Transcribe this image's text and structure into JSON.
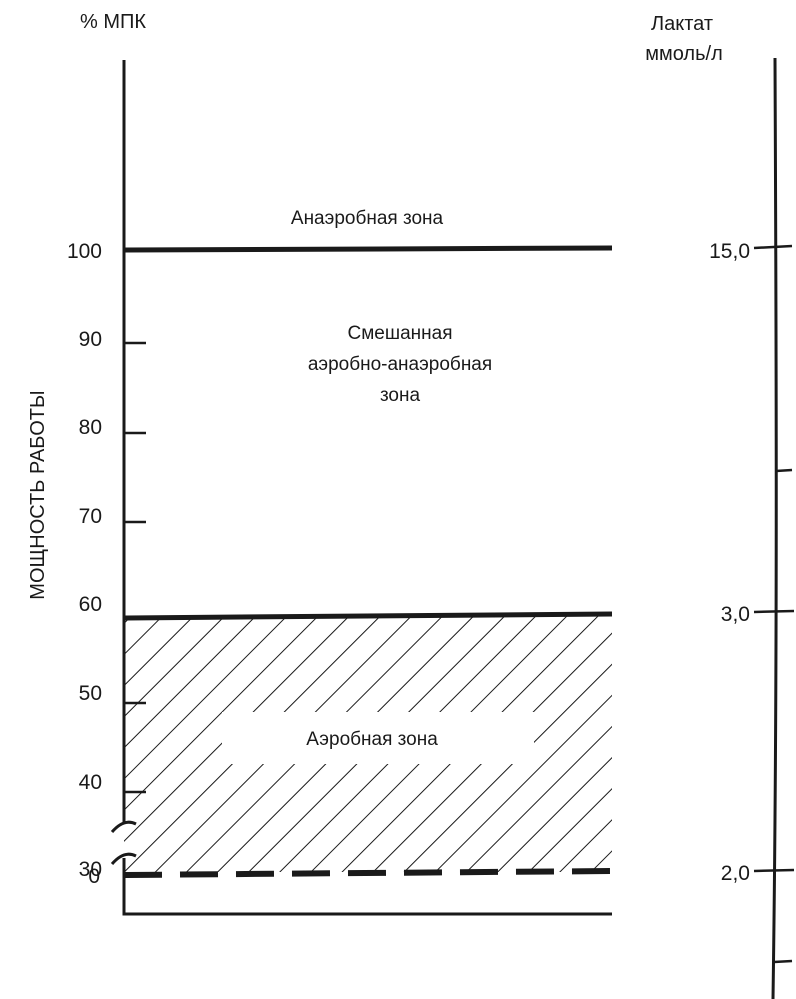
{
  "left_axis": {
    "unit_label": "% МПК",
    "title": "МОЩНОСТЬ РАБОТЫ",
    "ticks": [
      "100",
      "90",
      "80",
      "70",
      "60",
      "50",
      "40",
      "30",
      "0"
    ]
  },
  "right_axis": {
    "title_line1": "Лактат",
    "title_line2": "ммоль/л",
    "ticks": [
      "15,0",
      "3,0",
      "2,0"
    ]
  },
  "zones": {
    "anaerobic": "Анаэробная зона",
    "mixed_line1": "Смешанная",
    "mixed_line2": "аэробно-анаэробная",
    "mixed_line3": "зона",
    "aerobic": "Аэробная зона"
  },
  "thresholds": [
    {
      "percent_vo2max": 100,
      "lactate_mmol": "15,0",
      "line_style": "solid"
    },
    {
      "percent_vo2max": 60,
      "lactate_mmol": "3,0",
      "line_style": "solid"
    },
    {
      "percent_vo2max": 30,
      "lactate_mmol": "2,0",
      "line_style": "dashed"
    }
  ],
  "aerobic_zone_hatched": true,
  "colors": {
    "ink": "#1a1a1a",
    "background": "#ffffff"
  }
}
